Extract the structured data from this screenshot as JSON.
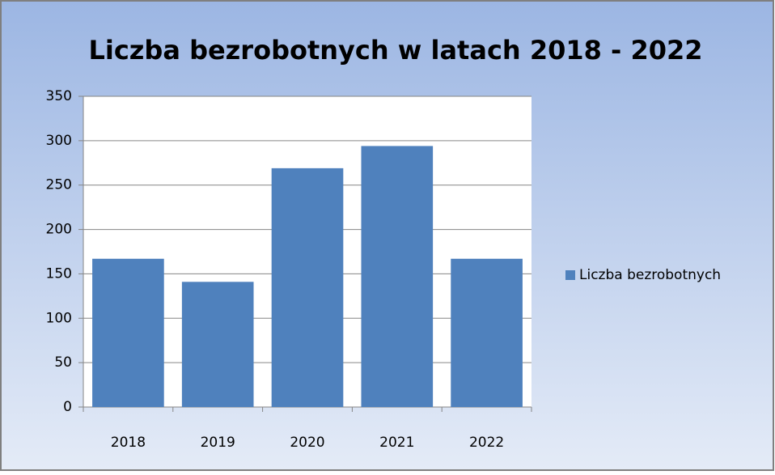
{
  "chart_data": {
    "type": "bar",
    "title": "Liczba bezrobotnych w latach 2018 - 2022",
    "categories": [
      "2018",
      "2019",
      "2020",
      "2021",
      "2022"
    ],
    "series": [
      {
        "name": "Liczba bezrobotnych",
        "color": "#4f81bd",
        "values": [
          167,
          141,
          269,
          294,
          167
        ]
      }
    ],
    "ylim": [
      0,
      350
    ],
    "yticks": [
      0,
      50,
      100,
      150,
      200,
      250,
      300,
      350
    ],
    "grid": true,
    "legend": "right"
  }
}
